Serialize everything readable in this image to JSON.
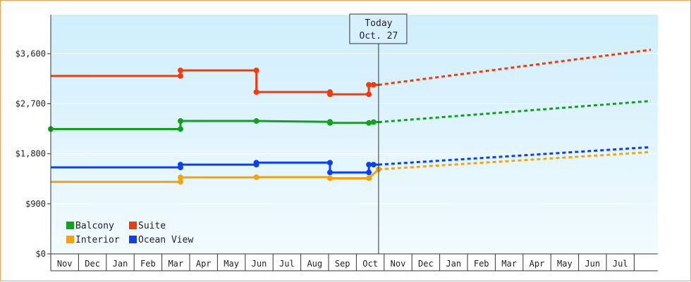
{
  "chart_data": {
    "type": "line",
    "title": "",
    "xlabel": "",
    "ylabel": "",
    "ylim": [
      0,
      4300
    ],
    "yticks": [
      0,
      900,
      1800,
      2700,
      3600
    ],
    "ytick_labels": [
      "$0",
      "$900",
      "$1,800",
      "$2,700",
      "$3,600"
    ],
    "month_labels": [
      "Nov",
      "Dec",
      "Jan",
      "Feb",
      "Mar",
      "Apr",
      "May",
      "Jun",
      "Jul",
      "Aug",
      "Sep",
      "Oct",
      "Nov",
      "Dec",
      "Jan",
      "Feb",
      "Mar",
      "Apr",
      "May",
      "Jun",
      "Jul"
    ],
    "x_unit": "months from start of first Nov",
    "xlim": [
      0,
      21.6
    ],
    "today": {
      "x": 11.8,
      "label_line1": "Today",
      "label_line2": "Oct. 27"
    },
    "grid": "y-major",
    "legend": "bottom-left",
    "series": [
      {
        "name": "Balcony",
        "color": "#11a11e",
        "history": [
          [
            0,
            2245
          ],
          [
            4.67,
            2245
          ],
          [
            4.67,
            2390
          ],
          [
            7.4,
            2390
          ],
          [
            7.4,
            2390
          ],
          [
            10.05,
            2375
          ],
          [
            10.05,
            2355
          ],
          [
            11.45,
            2355
          ],
          [
            11.62,
            2370
          ],
          [
            11.8,
            2370
          ]
        ],
        "markers": [
          [
            0,
            2245
          ],
          [
            4.67,
            2245
          ],
          [
            4.67,
            2390
          ],
          [
            7.4,
            2390
          ],
          [
            10.05,
            2375
          ],
          [
            10.05,
            2355
          ],
          [
            11.45,
            2355
          ],
          [
            11.62,
            2370
          ]
        ],
        "forecast": [
          [
            11.8,
            2370
          ],
          [
            21.6,
            2750
          ]
        ]
      },
      {
        "name": "Suite",
        "color": "#f03c0c",
        "history": [
          [
            0,
            3200
          ],
          [
            4.67,
            3200
          ],
          [
            4.67,
            3300
          ],
          [
            7.4,
            3300
          ],
          [
            7.4,
            2910
          ],
          [
            10.05,
            2910
          ],
          [
            10.05,
            2870
          ],
          [
            11.45,
            2870
          ],
          [
            11.45,
            3040
          ],
          [
            11.62,
            3040
          ],
          [
            11.8,
            3040
          ]
        ],
        "markers": [
          [
            4.67,
            3200
          ],
          [
            4.67,
            3300
          ],
          [
            7.4,
            3300
          ],
          [
            7.4,
            2910
          ],
          [
            10.05,
            2910
          ],
          [
            10.05,
            2870
          ],
          [
            11.45,
            2870
          ],
          [
            11.45,
            3040
          ],
          [
            11.62,
            3040
          ]
        ],
        "forecast": [
          [
            11.8,
            3040
          ],
          [
            21.6,
            3670
          ]
        ]
      },
      {
        "name": "Interior",
        "color": "#f5a30c",
        "history": [
          [
            0,
            1295
          ],
          [
            4.67,
            1295
          ],
          [
            4.67,
            1375
          ],
          [
            7.4,
            1375
          ],
          [
            7.4,
            1380
          ],
          [
            10.05,
            1380
          ],
          [
            10.05,
            1360
          ],
          [
            11.45,
            1360
          ],
          [
            11.8,
            1520
          ]
        ],
        "markers": [
          [
            4.67,
            1295
          ],
          [
            4.67,
            1375
          ],
          [
            7.4,
            1380
          ],
          [
            10.05,
            1360
          ],
          [
            11.45,
            1360
          ],
          [
            11.8,
            1520
          ]
        ],
        "forecast": [
          [
            11.8,
            1520
          ],
          [
            21.6,
            1830
          ]
        ]
      },
      {
        "name": "Ocean View",
        "color": "#0b3ff0",
        "history": [
          [
            0,
            1555
          ],
          [
            4.67,
            1555
          ],
          [
            4.67,
            1605
          ],
          [
            7.4,
            1605
          ],
          [
            7.4,
            1640
          ],
          [
            10.05,
            1640
          ],
          [
            10.05,
            1465
          ],
          [
            11.45,
            1465
          ],
          [
            11.45,
            1605
          ],
          [
            11.62,
            1605
          ],
          [
            11.8,
            1605
          ]
        ],
        "markers": [
          [
            4.67,
            1555
          ],
          [
            4.67,
            1605
          ],
          [
            7.4,
            1605
          ],
          [
            7.4,
            1640
          ],
          [
            10.05,
            1640
          ],
          [
            10.05,
            1465
          ],
          [
            11.45,
            1465
          ],
          [
            11.45,
            1605
          ],
          [
            11.62,
            1605
          ]
        ],
        "forecast": [
          [
            11.8,
            1605
          ],
          [
            21.6,
            1920
          ]
        ]
      }
    ],
    "legend_order": [
      "Balcony",
      "Suite",
      "Interior",
      "Ocean View"
    ]
  }
}
